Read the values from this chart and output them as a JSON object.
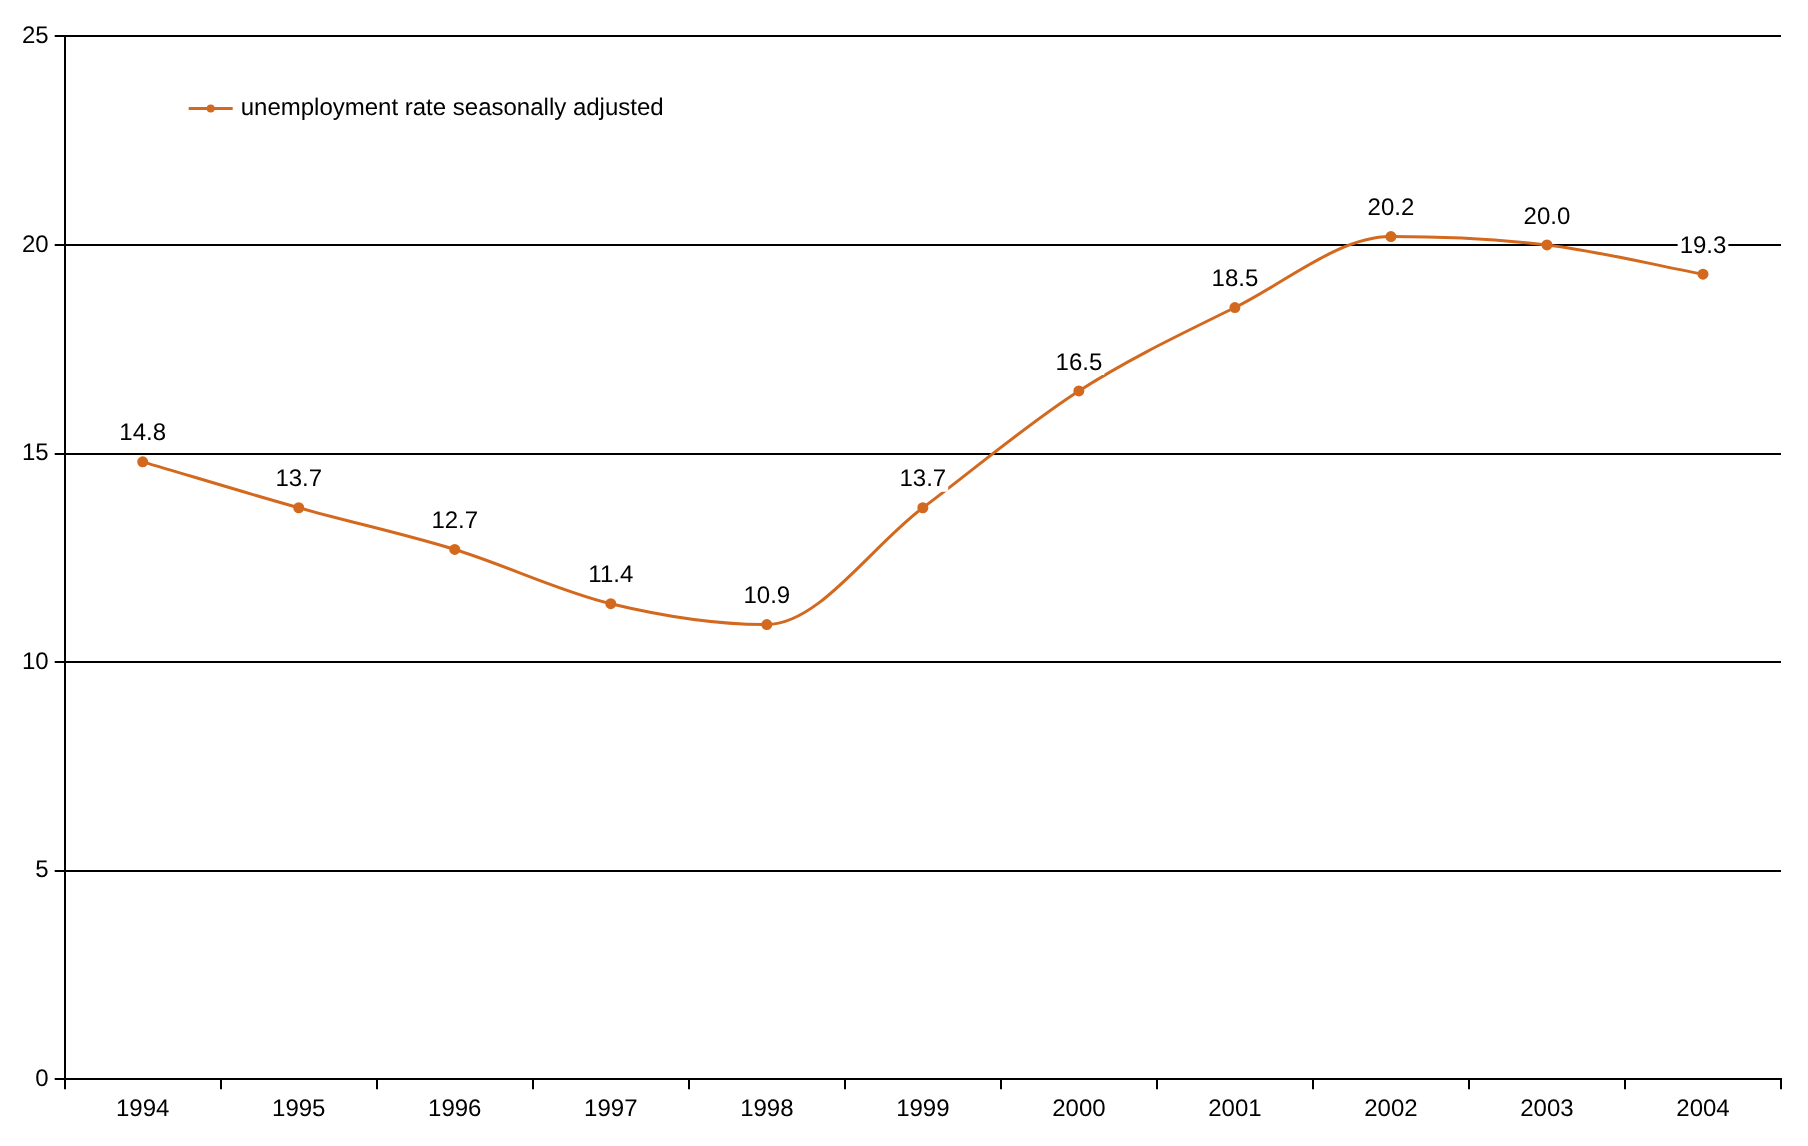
{
  "chart_data": {
    "type": "line",
    "categories": [
      "1994",
      "1995",
      "1996",
      "1997",
      "1998",
      "1999",
      "2000",
      "2001",
      "2002",
      "2003",
      "2004"
    ],
    "series": [
      {
        "name": "unemployment rate seasonally adjusted",
        "color": "#d2691e",
        "values": [
          14.8,
          13.7,
          12.7,
          11.4,
          10.9,
          13.7,
          16.5,
          18.5,
          20.2,
          20.0,
          19.3
        ],
        "value_labels": [
          "14.8",
          "13.7",
          "12.7",
          "11.4",
          "10.9",
          "13.7",
          "16.5",
          "18.5",
          "20.2",
          "20.0",
          "19.3"
        ]
      }
    ],
    "ylim": [
      0,
      25
    ],
    "yticks": [
      0,
      5,
      10,
      15,
      20,
      25
    ],
    "grid": "y",
    "legend": "top left",
    "marker": "circle",
    "line_style": "solid",
    "data_labels": true
  }
}
